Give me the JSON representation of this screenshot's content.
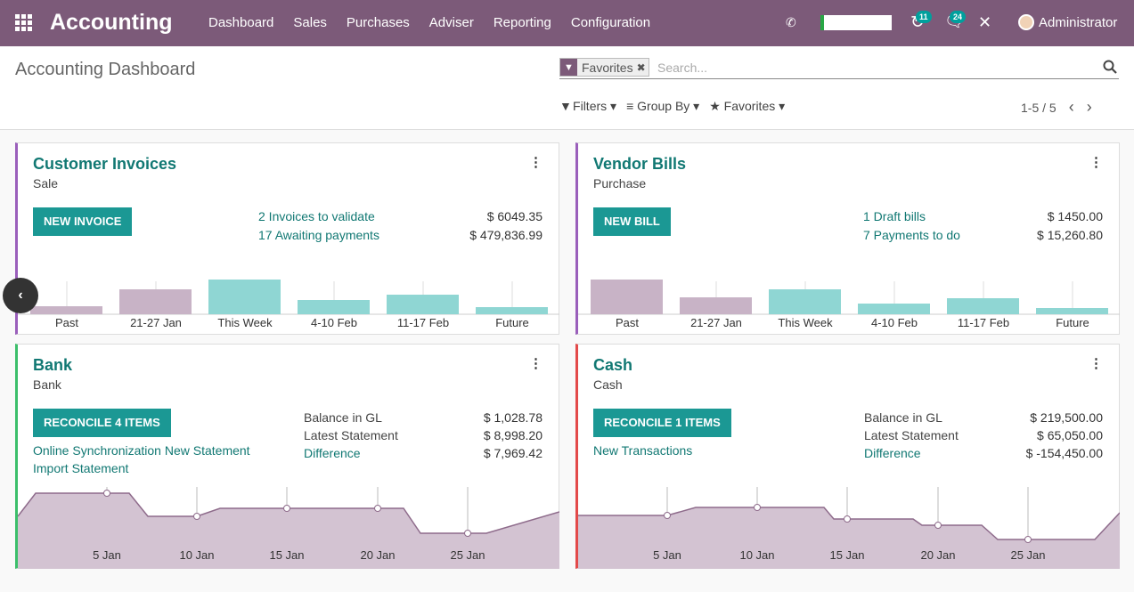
{
  "navbar": {
    "brand": "Accounting",
    "menu": [
      "Dashboard",
      "Sales",
      "Purchases",
      "Adviser",
      "Reporting",
      "Configuration"
    ],
    "activity_count": "11",
    "messages_count": "24",
    "user_name": "Administrator",
    "color": "#7c5a79"
  },
  "control": {
    "title": "Accounting Dashboard",
    "facet_label": "Favorites",
    "search_placeholder": "Search...",
    "filters_label": "Filters",
    "groupby_label": "Group By",
    "favorites_label": "Favorites",
    "pager": "1-5 / 5"
  },
  "cards": {
    "invoices": {
      "title": "Customer Invoices",
      "subtitle": "Sale",
      "button": "NEW INVOICE",
      "stats": [
        {
          "label": "2 Invoices to validate",
          "amount": "$ 6049.35"
        },
        {
          "label": "17 Awaiting payments",
          "amount": "$ 479,836.99"
        }
      ],
      "chart_labels": [
        "Past",
        "21-27 Jan",
        "This Week",
        "4-10 Feb",
        "11-17 Feb",
        "Future"
      ]
    },
    "bills": {
      "title": "Vendor Bills",
      "subtitle": "Purchase",
      "button": "NEW BILL",
      "stats": [
        {
          "label": "1 Draft bills",
          "amount": "$ 1450.00"
        },
        {
          "label": "7 Payments to do",
          "amount": "$ 15,260.80"
        }
      ],
      "chart_labels": [
        "Past",
        "21-27 Jan",
        "This Week",
        "4-10 Feb",
        "11-17 Feb",
        "Future"
      ]
    },
    "bank": {
      "title": "Bank",
      "subtitle": "Bank",
      "button": "RECONCILE 4 ITEMS",
      "links": [
        "Online Synchronization New Statement",
        "Import Statement"
      ],
      "rows": [
        {
          "label": "Balance in GL",
          "amount": "$ 1,028.78"
        },
        {
          "label": "Latest Statement",
          "amount": "$ 8,998.20"
        },
        {
          "label": "Difference",
          "amount": "$ 7,969.42"
        }
      ],
      "chart_labels": [
        "5 Jan",
        "10 Jan",
        "15 Jan",
        "20 Jan",
        "25 Jan"
      ]
    },
    "cash": {
      "title": "Cash",
      "subtitle": "Cash",
      "button": "RECONCILE 1 ITEMS",
      "links": [
        "New Transactions"
      ],
      "rows": [
        {
          "label": "Balance in GL",
          "amount": "$ 219,500.00"
        },
        {
          "label": "Latest Statement",
          "amount": "$ 65,050.00"
        },
        {
          "label": "Difference",
          "amount": "$ -154,450.00"
        }
      ],
      "chart_labels": [
        "5 Jan",
        "10 Jan",
        "15 Jan",
        "20 Jan",
        "25 Jan"
      ]
    }
  },
  "colors": {
    "past_bar": "#c8b3c6",
    "future_bar": "#8fd6d3",
    "teal": "#117873",
    "line_fill": "#d3c3d2",
    "line_stroke": "#8e6b8b"
  }
}
